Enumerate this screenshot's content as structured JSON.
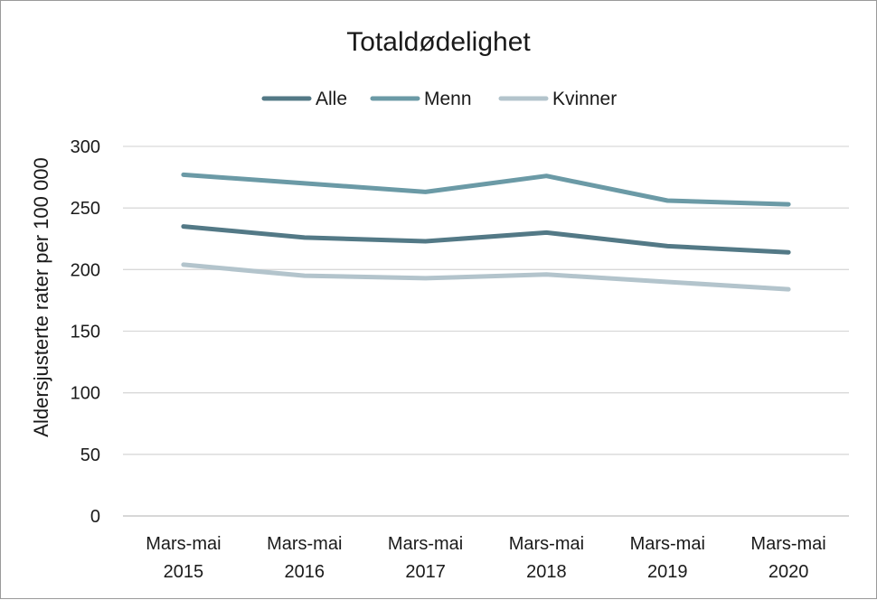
{
  "chart_data": {
    "type": "line",
    "title": "Totaldødelighet",
    "xlabel": "",
    "ylabel": "Aldersjusterte rater per 100 000",
    "categories": [
      [
        "Mars-mai",
        "2015"
      ],
      [
        "Mars-mai",
        "2016"
      ],
      [
        "Mars-mai",
        "2017"
      ],
      [
        "Mars-mai",
        "2018"
      ],
      [
        "Mars-mai",
        "2019"
      ],
      [
        "Mars-mai",
        "2020"
      ]
    ],
    "ylim": [
      0,
      300
    ],
    "yticks": [
      0,
      50,
      100,
      150,
      200,
      250,
      300
    ],
    "grid": true,
    "legend": "top",
    "series": [
      {
        "name": "Alle",
        "color": "#537986",
        "values": [
          235,
          226,
          223,
          230,
          219,
          214
        ]
      },
      {
        "name": "Menn",
        "color": "#6b9aa6",
        "values": [
          277,
          270,
          263,
          276,
          256,
          253
        ]
      },
      {
        "name": "Kvinner",
        "color": "#b3c4cc",
        "values": [
          204,
          195,
          193,
          196,
          190,
          184
        ]
      }
    ]
  }
}
